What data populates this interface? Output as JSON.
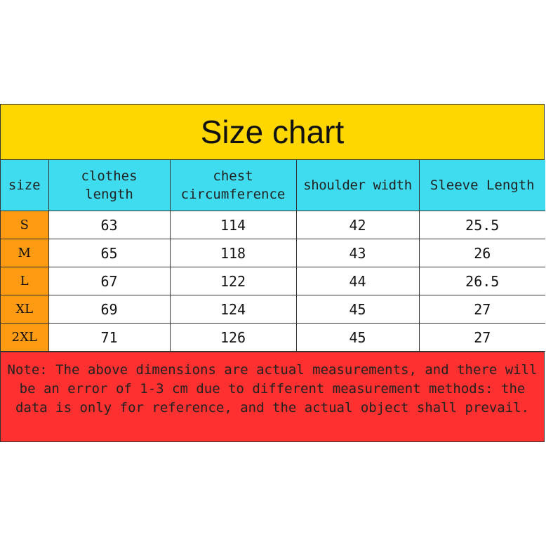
{
  "title": "Size chart",
  "headers": [
    "size",
    "clothes length",
    "chest circumference",
    "shoulder width",
    "Sleeve Length"
  ],
  "rows": [
    [
      "S",
      "63",
      "114",
      "42",
      "25.5"
    ],
    [
      "M",
      "65",
      "118",
      "43",
      "26"
    ],
    [
      "L",
      "67",
      "122",
      "44",
      "26.5"
    ],
    [
      "XL",
      "69",
      "124",
      "45",
      "27"
    ],
    [
      "2XL",
      "71",
      "126",
      "45",
      "27"
    ]
  ],
  "note": "Note: The above dimensions are actual measurements, and there will be an error of 1-3 cm due to different measurement methods: the data is only for reference, and the actual object shall prevail.",
  "colors": {
    "title_bg": "#ffd700",
    "header_bg": "#3fdcef",
    "size_col_bg": "#ff9b12",
    "note_bg": "#ff3030"
  }
}
